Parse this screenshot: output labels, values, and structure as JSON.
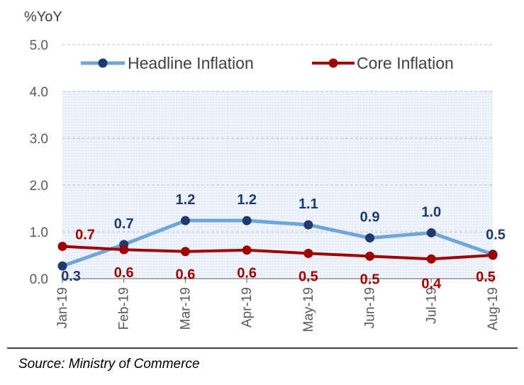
{
  "chart_data": {
    "type": "line",
    "title": "",
    "ylabel": "%YoY",
    "xlabel": "",
    "ylim": [
      0,
      5
    ],
    "yticks": [
      "0.0",
      "1.0",
      "2.0",
      "3.0",
      "4.0",
      "5.0"
    ],
    "categories": [
      "Jan-19",
      "Feb-19",
      "Mar-19",
      "Apr-19",
      "May-19",
      "Jun-19",
      "Jul-19",
      "Aug-19"
    ],
    "series": [
      {
        "name": "Headline Inflation",
        "color": "#6fa5d8",
        "marker_color": "#1f3a6e",
        "label_color": "#1f3a6e",
        "values": [
          0.27,
          0.73,
          1.24,
          1.24,
          1.15,
          0.87,
          0.98,
          0.52
        ],
        "labels": [
          "0.3",
          "0.7",
          "1.2",
          "1.2",
          "1.1",
          "0.9",
          "1.0",
          "0.5"
        ]
      },
      {
        "name": "Core Inflation",
        "color": "#a00000",
        "marker_color": "#a00000",
        "label_color": "#a00000",
        "values": [
          0.69,
          0.62,
          0.58,
          0.61,
          0.54,
          0.48,
          0.42,
          0.5
        ],
        "labels": [
          "0.7",
          "0.6",
          "0.6",
          "0.6",
          "0.5",
          "0.5",
          "0.4",
          "0.5"
        ]
      }
    ],
    "legend_position": "top",
    "grid": true,
    "source": "Source: Ministry of Commerce"
  }
}
